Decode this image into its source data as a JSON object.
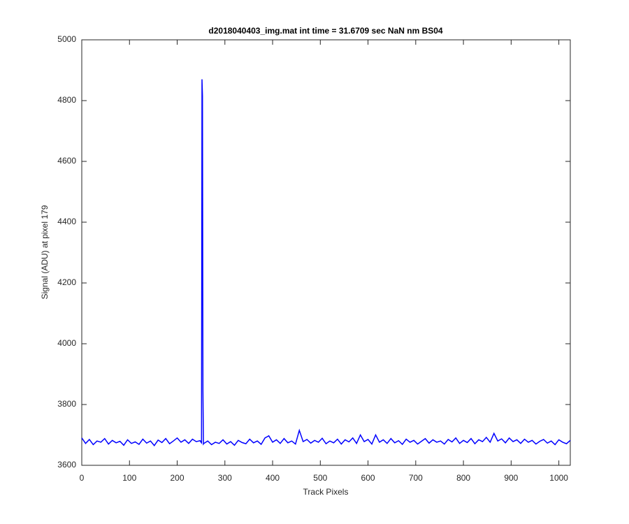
{
  "chart_data": {
    "type": "line",
    "title": "d2018040403_img.mat int time = 31.6709 sec  NaN nm BS04",
    "xlabel": "Track Pixels",
    "ylabel": "Signal (ADU) at pixel 179",
    "xlim": [
      0,
      1024
    ],
    "ylim": [
      3600,
      5000
    ],
    "xticks": [
      0,
      100,
      200,
      300,
      400,
      500,
      600,
      700,
      800,
      900,
      1000
    ],
    "yticks": [
      3600,
      3800,
      4000,
      4200,
      4400,
      4600,
      4800,
      5000
    ],
    "x": [
      0,
      8,
      16,
      24,
      32,
      40,
      48,
      56,
      64,
      72,
      80,
      88,
      96,
      104,
      112,
      120,
      128,
      136,
      144,
      152,
      160,
      168,
      176,
      184,
      192,
      200,
      208,
      216,
      224,
      232,
      240,
      248,
      250,
      251,
      252,
      253,
      254,
      255,
      256,
      264,
      272,
      280,
      288,
      296,
      304,
      312,
      320,
      328,
      336,
      344,
      352,
      360,
      368,
      376,
      384,
      392,
      400,
      408,
      416,
      424,
      432,
      440,
      448,
      456,
      464,
      472,
      480,
      488,
      496,
      504,
      512,
      520,
      528,
      536,
      544,
      552,
      560,
      568,
      576,
      584,
      592,
      600,
      608,
      616,
      624,
      632,
      640,
      648,
      656,
      664,
      672,
      680,
      688,
      696,
      704,
      712,
      720,
      728,
      736,
      744,
      752,
      760,
      768,
      776,
      784,
      792,
      800,
      808,
      816,
      824,
      832,
      840,
      848,
      856,
      864,
      872,
      880,
      888,
      896,
      904,
      912,
      920,
      928,
      936,
      944,
      952,
      960,
      968,
      976,
      984,
      992,
      1000,
      1008,
      1016,
      1024
    ],
    "series": [
      {
        "name": "signal",
        "color": "#0000ff",
        "values": [
          3690,
          3672,
          3685,
          3668,
          3680,
          3676,
          3688,
          3670,
          3682,
          3674,
          3679,
          3666,
          3684,
          3672,
          3677,
          3669,
          3686,
          3673,
          3680,
          3665,
          3683,
          3675,
          3688,
          3671,
          3680,
          3690,
          3676,
          3684,
          3672,
          3686,
          3678,
          3681,
          3676,
          3674,
          4870,
          4815,
          3845,
          3670,
          3672,
          3680,
          3668,
          3676,
          3672,
          3684,
          3670,
          3678,
          3666,
          3682,
          3675,
          3671,
          3686,
          3674,
          3680,
          3669,
          3690,
          3697,
          3676,
          3684,
          3672,
          3688,
          3674,
          3680,
          3670,
          3715,
          3678,
          3685,
          3673,
          3682,
          3676,
          3689,
          3671,
          3680,
          3674,
          3686,
          3670,
          3684,
          3677,
          3690,
          3672,
          3700,
          3678,
          3685,
          3670,
          3700,
          3676,
          3684,
          3672,
          3688,
          3674,
          3681,
          3669,
          3686,
          3676,
          3682,
          3670,
          3679,
          3688,
          3673,
          3684,
          3676,
          3680,
          3670,
          3685,
          3677,
          3690,
          3672,
          3682,
          3675,
          3688,
          3671,
          3684,
          3678,
          3692,
          3676,
          3705,
          3680,
          3687,
          3674,
          3690,
          3678,
          3684,
          3672,
          3686,
          3676,
          3682,
          3670,
          3679,
          3685,
          3673,
          3680,
          3668,
          3684,
          3676,
          3671,
          3682
        ]
      }
    ]
  }
}
